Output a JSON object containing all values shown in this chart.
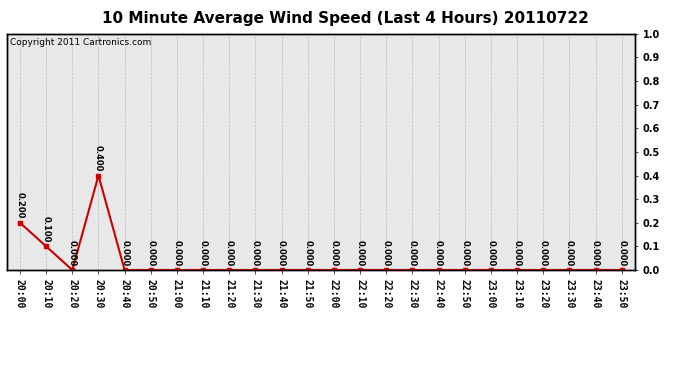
{
  "title": "10 Minute Average Wind Speed (Last 4 Hours) 20110722",
  "copyright_text": "Copyright 2011 Cartronics.com",
  "x_labels": [
    "20:00",
    "20:10",
    "20:20",
    "20:30",
    "20:40",
    "20:50",
    "21:00",
    "21:10",
    "21:20",
    "21:30",
    "21:40",
    "21:50",
    "22:00",
    "22:10",
    "22:20",
    "22:30",
    "22:40",
    "22:50",
    "23:00",
    "23:10",
    "23:20",
    "23:30",
    "23:40",
    "23:50"
  ],
  "y_values": [
    0.2,
    0.1,
    0.0,
    0.4,
    0.0,
    0.0,
    0.0,
    0.0,
    0.0,
    0.0,
    0.0,
    0.0,
    0.0,
    0.0,
    0.0,
    0.0,
    0.0,
    0.0,
    0.0,
    0.0,
    0.0,
    0.0,
    0.0,
    0.0
  ],
  "ylim": [
    0.0,
    1.0
  ],
  "y_right_ticks": [
    0.0,
    0.1,
    0.2,
    0.3,
    0.4,
    0.5,
    0.6,
    0.7,
    0.8,
    0.9,
    1.0
  ],
  "line_color": "#cc0000",
  "marker_color": "#cc0000",
  "bg_color": "#ffffff",
  "plot_bg_color": "#e8e8e8",
  "grid_color": "#bbbbbb",
  "title_fontsize": 11,
  "annotation_fontsize": 6,
  "tick_fontsize": 7,
  "copyright_fontsize": 6.5
}
